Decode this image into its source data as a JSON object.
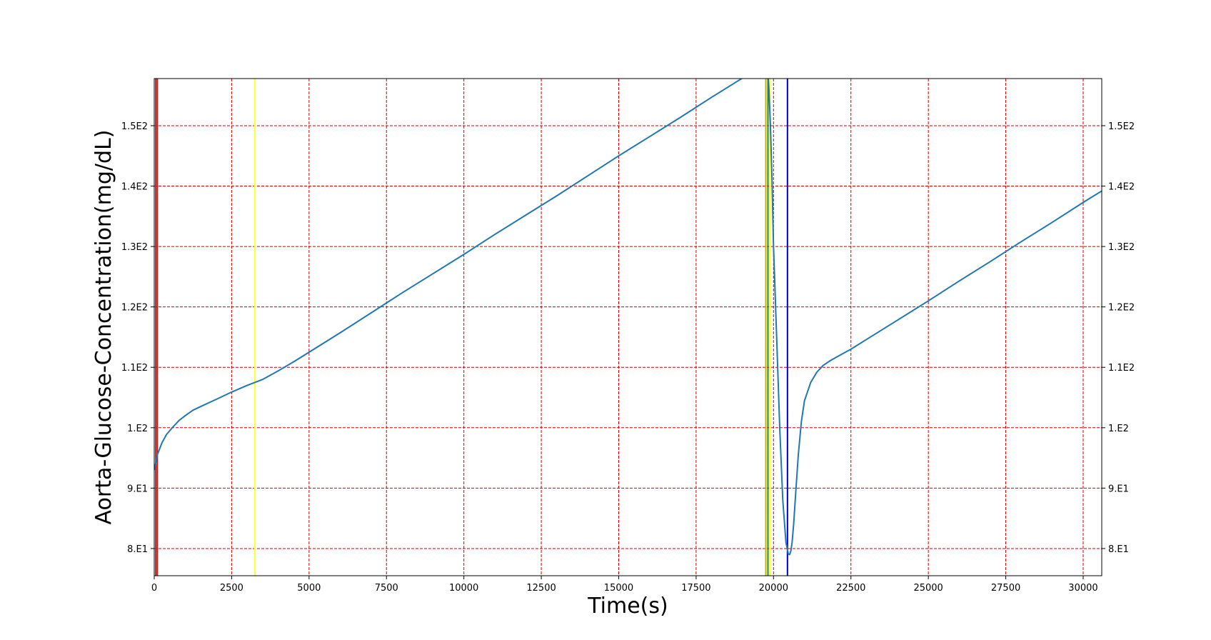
{
  "chart_data": {
    "type": "line",
    "title": "",
    "xlabel": "Time(s)",
    "ylabel": "Aorta-Glucose-Concentration(mg/dL)",
    "xlim": [
      0,
      30600
    ],
    "ylim": [
      75.5,
      157.8
    ],
    "x_ticks": [
      0,
      2500,
      5000,
      7500,
      10000,
      12500,
      15000,
      17500,
      20000,
      22500,
      25000,
      27500,
      30000
    ],
    "x_tick_labels": [
      "0",
      "2500",
      "5000",
      "7500",
      "10000",
      "12500",
      "15000",
      "17500",
      "20000",
      "22500",
      "25000",
      "27500",
      "30000"
    ],
    "y_ticks": [
      80,
      90,
      100,
      110,
      120,
      130,
      140,
      150
    ],
    "y_tick_labels": [
      "8.E1",
      "9.E1",
      "1.E2",
      "1.1E2",
      "1.2E2",
      "1.3E2",
      "1.4E2",
      "1.5E2"
    ],
    "y_ticks_right": true,
    "grid": true,
    "grid_color": "#cc0000",
    "grid_style": "dashed",
    "series": [
      {
        "color": "#1f77b4",
        "x": [
          0,
          100,
          250,
          400,
          600,
          800,
          1000,
          1250,
          1500,
          2000,
          2500,
          3000,
          3250,
          3500,
          4000,
          4500,
          5000,
          6000,
          7000,
          8000,
          9000,
          10000,
          11000,
          12000,
          13000,
          14000,
          15000,
          16000,
          17000,
          18000,
          19000,
          19800,
          19850,
          19900,
          19950,
          20000,
          20100,
          20200,
          20300,
          20400,
          20480,
          20520,
          20560,
          20600,
          20650,
          20700,
          20800,
          20900,
          21000,
          21200,
          21400,
          21600,
          21800,
          22000,
          22500,
          23000,
          24000,
          25000,
          26000,
          27000,
          28000,
          29000,
          30000,
          30600
        ],
        "y": [
          93.0,
          95.5,
          97.5,
          98.9,
          100.1,
          101.2,
          102.0,
          102.9,
          103.5,
          104.7,
          105.9,
          107.0,
          107.5,
          108.0,
          109.4,
          110.9,
          112.5,
          115.7,
          119.0,
          122.3,
          125.5,
          128.7,
          132.0,
          135.2,
          138.4,
          141.7,
          145.0,
          148.2,
          151.4,
          154.7,
          157.9,
          160.4,
          156.3,
          150.0,
          141.0,
          130.0,
          115.0,
          100.0,
          88.0,
          81.0,
          79.1,
          79.0,
          79.6,
          81.0,
          84.0,
          88.0,
          95.5,
          101.0,
          104.5,
          107.5,
          109.2,
          110.3,
          111.0,
          111.6,
          113.0,
          114.6,
          117.8,
          121.0,
          124.3,
          127.5,
          130.8,
          134.0,
          137.3,
          139.2
        ]
      }
    ],
    "vertical_lines": [
      {
        "x": 50,
        "color": "#b22222"
      },
      {
        "x": 100,
        "color": "#b22222"
      },
      {
        "x": 3250,
        "color": "#ffff33"
      },
      {
        "x": 19750,
        "color": "#c8b400"
      },
      {
        "x": 19820,
        "color": "#228b22"
      },
      {
        "x": 19880,
        "color": "#ffff33"
      },
      {
        "x": 20450,
        "color": "#0000cd"
      }
    ]
  }
}
